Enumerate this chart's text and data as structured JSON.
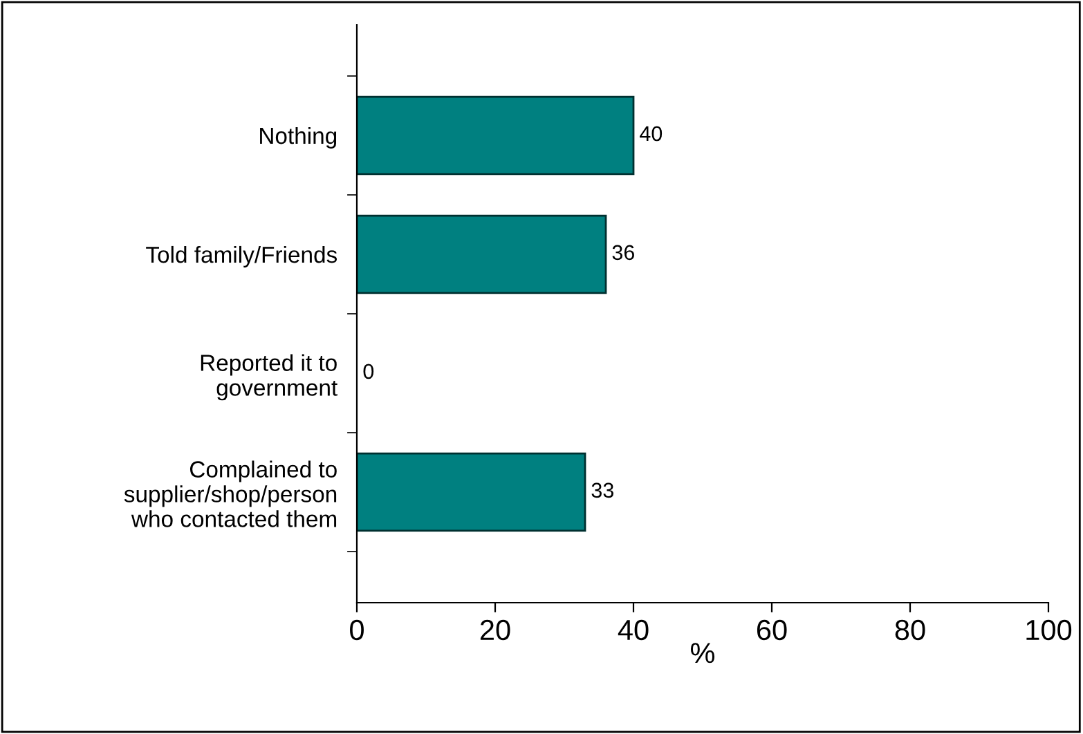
{
  "chart_data": {
    "type": "bar",
    "orientation": "horizontal",
    "categories": [
      "Nothing",
      "Told family/Friends",
      "Reported it to\ngovernment",
      "Complained to\nsupplier/shop/person\nwho contacted them"
    ],
    "values": [
      40,
      36,
      0,
      33
    ],
    "color": "#008080",
    "xlim": [
      0,
      100
    ],
    "xticks": [
      0,
      20,
      40,
      60,
      80,
      100
    ],
    "xlabel": "%",
    "data_labels": true,
    "grid": false,
    "legend": false
  }
}
